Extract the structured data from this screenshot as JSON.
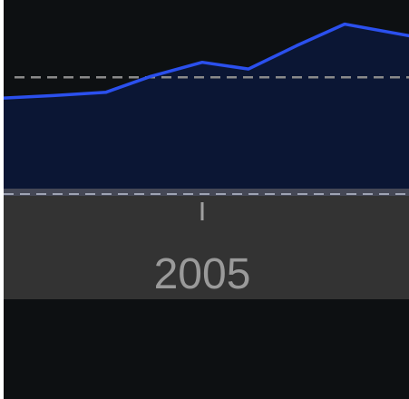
{
  "chart_data": {
    "type": "area",
    "x_tick_labels": [
      "2005"
    ],
    "series": [
      {
        "values": [
          0.37,
          0.4,
          0.44,
          0.63,
          0.8,
          0.72,
          1.0,
          1.26,
          1.12
        ],
        "color": "#2b50ee",
        "fill": "#0b1634"
      }
    ],
    "reference_line": 0.62,
    "ylim": [
      -0.72,
      1.55
    ],
    "colors": {
      "background": "#0d1012",
      "axis_band": "#333333",
      "axis_band_edge": "#454856",
      "tick": "#a0a0a0",
      "tick_label": "#9a9a9a",
      "reference_line": "#8a8a8a"
    }
  }
}
